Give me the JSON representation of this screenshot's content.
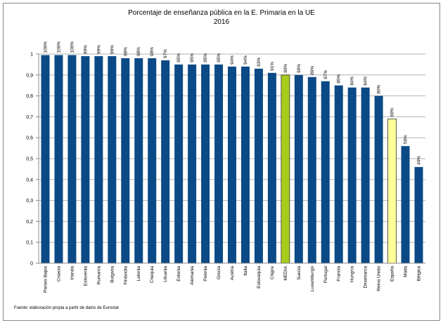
{
  "chart_data": {
    "type": "bar",
    "title": "Porcentaje de enseñanza pública en la E. Primaria en la UE",
    "subtitle": "2016",
    "categories": [
      "Países Bajos",
      "Croacia",
      "Irlanda",
      "Eslovenia",
      "Rumanía",
      "Bulgaria",
      "Finlandia",
      "Letonia",
      "Chequia",
      "Lituania",
      "Estonia",
      "Alemania",
      "Polonia",
      "Grecia",
      "Austria",
      "Italia",
      "Eslovaquia",
      "Chipre",
      "MEDIA",
      "Suecia",
      "Luxemburgo",
      "Portugal",
      "Francia",
      "Hungría",
      "Dinamarca",
      "Reino Unido",
      "España",
      "Malta",
      "Bélgica"
    ],
    "values": [
      0.995,
      0.995,
      0.995,
      0.99,
      0.99,
      0.99,
      0.98,
      0.98,
      0.98,
      0.97,
      0.95,
      0.95,
      0.95,
      0.95,
      0.94,
      0.94,
      0.93,
      0.91,
      0.9,
      0.9,
      0.89,
      0.87,
      0.85,
      0.84,
      0.84,
      0.8,
      0.69,
      0.56,
      0.46
    ],
    "value_labels": [
      "100%",
      "100%",
      "100%",
      "99%",
      "99%",
      "99%",
      "98%",
      "98%",
      "98%",
      "97%",
      "95%",
      "95%",
      "95%",
      "95%",
      "94%",
      "94%",
      "93%",
      "91%",
      "90%",
      "90%",
      "89%",
      "87%",
      "85%",
      "84%",
      "84%",
      "80%",
      "69%",
      "56%",
      "46%"
    ],
    "colors": [
      "#0b4a87",
      "#0b4a87",
      "#0b4a87",
      "#0b4a87",
      "#0b4a87",
      "#0b4a87",
      "#0b4a87",
      "#0b4a87",
      "#0b4a87",
      "#0b4a87",
      "#0b4a87",
      "#0b4a87",
      "#0b4a87",
      "#0b4a87",
      "#0b4a87",
      "#0b4a87",
      "#0b4a87",
      "#0b4a87",
      "#a6cc1c",
      "#0b4a87",
      "#0b4a87",
      "#0b4a87",
      "#0b4a87",
      "#0b4a87",
      "#0b4a87",
      "#0b4a87",
      "#ffff99",
      "#0b4a87",
      "#0b4a87"
    ],
    "ylim": [
      0,
      1
    ],
    "yticks": [
      0,
      {
        "value": 0.1,
        "label": "0,1"
      },
      {
        "value": 0.2,
        "label": "0,2"
      },
      {
        "value": 0.3,
        "label": "0,3"
      },
      {
        "value": 0.4,
        "label": "0,4"
      },
      {
        "value": 0.5,
        "label": "0,5"
      },
      {
        "value": 0.6,
        "label": "0,6"
      },
      {
        "value": 0.7,
        "label": "0,7"
      },
      {
        "value": 0.8,
        "label": "0,8"
      },
      {
        "value": 0.9,
        "label": "0,9"
      },
      1
    ],
    "grid": true,
    "source": "Fuente: elaboración propia a partir de datos de Eurostat"
  }
}
